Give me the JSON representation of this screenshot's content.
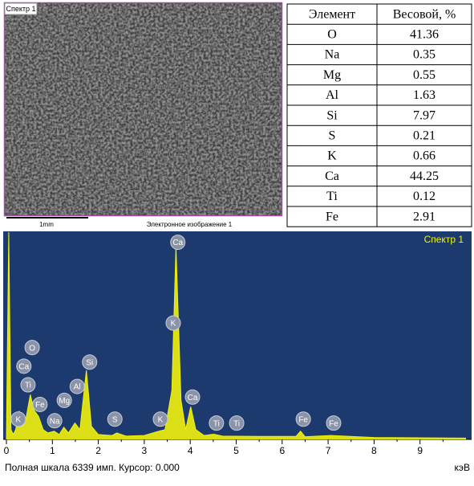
{
  "image": {
    "label": "Спектр 1",
    "scale": "1mm",
    "caption": "Электронное изображение 1"
  },
  "table": {
    "header": [
      "Элемент",
      "Весовой, %"
    ],
    "rows": [
      [
        "O",
        "41.36"
      ],
      [
        "Na",
        "0.35"
      ],
      [
        "Mg",
        "0.55"
      ],
      [
        "Al",
        "1.63"
      ],
      [
        "Si",
        "7.97"
      ],
      [
        "S",
        "0.21"
      ],
      [
        "K",
        "0.66"
      ],
      [
        "Ca",
        "44.25"
      ],
      [
        "Ti",
        "0.12"
      ],
      [
        "Fe",
        "2.91"
      ]
    ]
  },
  "chart_data": {
    "type": "line",
    "title": "Спектр 1",
    "x": [
      0,
      0.05,
      0.1,
      0.15,
      0.2,
      0.28,
      0.35,
      0.42,
      0.52,
      0.6,
      0.7,
      0.8,
      0.9,
      1.04,
      1.15,
      1.25,
      1.35,
      1.49,
      1.6,
      1.74,
      1.85,
      2.0,
      2.3,
      2.4,
      2.6,
      3.0,
      3.31,
      3.45,
      3.6,
      3.69,
      3.8,
      3.9,
      4.01,
      4.12,
      4.3,
      4.51,
      4.7,
      5.5,
      6.3,
      6.4,
      6.5,
      7.06,
      8,
      9,
      10
    ],
    "series": [
      {
        "color": "#f2f20c",
        "values": [
          0,
          6339,
          300,
          150,
          300,
          870,
          400,
          600,
          1370,
          900,
          700,
          300,
          200,
          250,
          150,
          370,
          200,
          500,
          300,
          2115,
          400,
          150,
          120,
          200,
          100,
          120,
          250,
          300,
          1500,
          5900,
          1200,
          300,
          1000,
          300,
          120,
          160,
          100,
          90,
          90,
          250,
          80,
          120,
          60,
          50,
          40
        ]
      }
    ],
    "xlim": [
      0,
      10
    ],
    "xticks": [
      0,
      1,
      2,
      3,
      4,
      5,
      6,
      7,
      8,
      9
    ],
    "ylim": [
      0,
      6339
    ],
    "peak_labels": [
      {
        "label": "Ca",
        "x": 3.73,
        "y": 6030
      },
      {
        "label": "K",
        "x": 3.63,
        "y": 3560
      },
      {
        "label": "Si",
        "x": 1.81,
        "y": 2365
      },
      {
        "label": "Al",
        "x": 1.54,
        "y": 1620
      },
      {
        "label": "Mg",
        "x": 1.26,
        "y": 1195
      },
      {
        "label": "O",
        "x": 0.56,
        "y": 2810
      },
      {
        "label": "Ca",
        "x": 0.38,
        "y": 2240
      },
      {
        "label": "Ti",
        "x": 0.47,
        "y": 1670
      },
      {
        "label": "Fe",
        "x": 0.73,
        "y": 1070
      },
      {
        "label": "K",
        "x": 0.26,
        "y": 620
      },
      {
        "label": "Na",
        "x": 1.05,
        "y": 570
      },
      {
        "label": "S",
        "x": 2.36,
        "y": 620
      },
      {
        "label": "K",
        "x": 3.35,
        "y": 620
      },
      {
        "label": "Ca",
        "x": 4.05,
        "y": 1295
      },
      {
        "label": "Ti",
        "x": 4.57,
        "y": 500
      },
      {
        "label": "Ti",
        "x": 5.01,
        "y": 500
      },
      {
        "label": "Fe",
        "x": 6.46,
        "y": 620
      },
      {
        "label": "Fe",
        "x": 7.12,
        "y": 500
      }
    ],
    "footer": "Полная шкала 6339 имп. Курсор: 0.000",
    "x_label": "кэВ"
  }
}
